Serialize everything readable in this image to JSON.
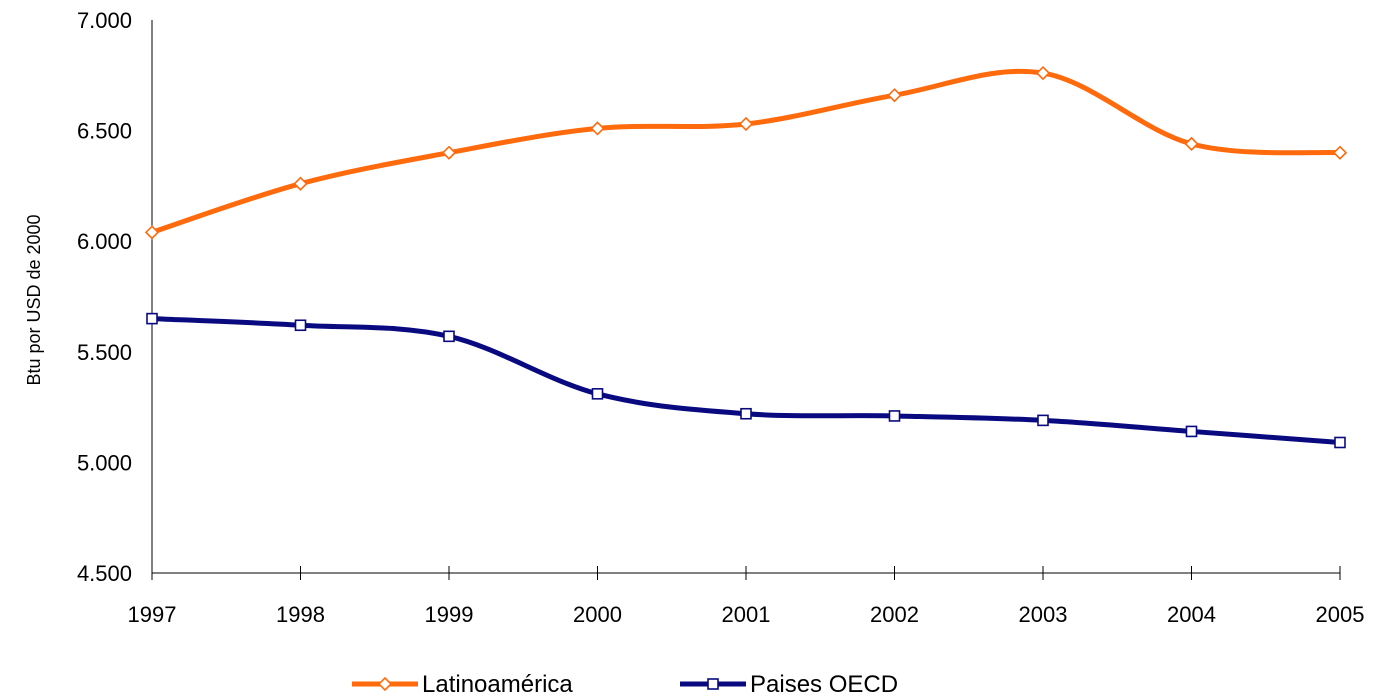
{
  "chart_data": {
    "type": "line",
    "title": "",
    "xlabel": "",
    "ylabel": "Btu por USD de 2000",
    "x": [
      "1997",
      "1998",
      "1999",
      "2000",
      "2001",
      "2002",
      "2003",
      "2004",
      "2005"
    ],
    "y_ticks": [
      "4.500",
      "5.000",
      "5.500",
      "6.000",
      "6.500",
      "7.000"
    ],
    "ylim": [
      4500,
      7000
    ],
    "grid": false,
    "legend_position": "bottom",
    "series": [
      {
        "name": "Latinoamérica",
        "color": "#FF6A0D",
        "marker": "diamond",
        "values": [
          6040,
          6260,
          6400,
          6510,
          6530,
          6660,
          6760,
          6440,
          6400
        ]
      },
      {
        "name": "Paises OECD",
        "color": "#0A0A80",
        "marker": "square",
        "values": [
          5650,
          5620,
          5570,
          5310,
          5220,
          5210,
          5190,
          5140,
          5090
        ]
      }
    ]
  }
}
